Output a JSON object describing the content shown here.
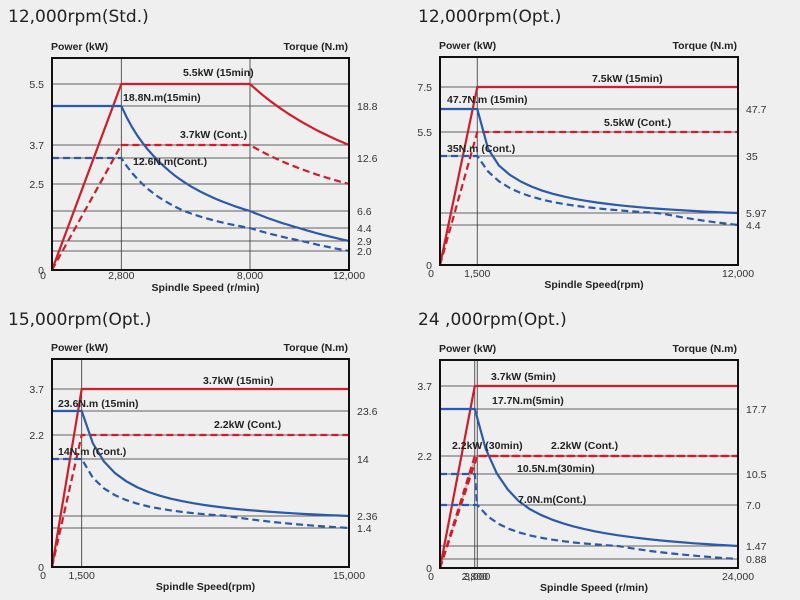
{
  "colors": {
    "power": "#cc1f2b",
    "torque": "#2b5aa8",
    "fill": "#e8a0a6",
    "grid": "#333333",
    "frame": "#111111"
  },
  "chart_data": [
    {
      "type": "line",
      "title": "12,000rpm(Std.)",
      "ylabel_left": "Power (kW)",
      "ylabel_right": "Torque (N.m)",
      "xlabel": "Spindle Speed (r/min)",
      "xlim": [
        0,
        12000
      ],
      "x_ticks": [
        "0",
        "2,800",
        "8,000",
        "12,000"
      ],
      "x_tick_values": [
        0,
        2800,
        8000,
        12000
      ],
      "left_ticks": [
        "0",
        "2.5",
        "3.7",
        "5.5"
      ],
      "right_ticks": [
        "18.8",
        "12.6",
        "6.6",
        "4.4",
        "2.9",
        "2.0"
      ],
      "series": [
        {
          "name": "5.5kW (15min)",
          "axis": "power",
          "style": "solid",
          "points": [
            [
              0,
              0
            ],
            [
              2800,
              5.5
            ],
            [
              8000,
              5.5
            ],
            [
              12000,
              3.7
            ]
          ]
        },
        {
          "name": "3.7kW (Cont.)",
          "axis": "power",
          "style": "dashed",
          "points": [
            [
              0,
              0
            ],
            [
              2800,
              3.7
            ],
            [
              8000,
              3.7
            ],
            [
              12000,
              2.5
            ]
          ]
        },
        {
          "name": "18.8N.m(15min)",
          "axis": "torque",
          "style": "solid",
          "points": [
            [
              0,
              18.8
            ],
            [
              2800,
              18.8
            ],
            [
              8000,
              6.6
            ],
            [
              12000,
              2.9
            ]
          ]
        },
        {
          "name": "12.6N.m(Cont.)",
          "axis": "torque",
          "style": "dashed",
          "points": [
            [
              0,
              12.6
            ],
            [
              2800,
              12.6
            ],
            [
              8000,
              4.4
            ],
            [
              12000,
              2.0
            ]
          ]
        }
      ],
      "annotations": [
        "5.5kW (15min)",
        "18.8N.m(15min)",
        "3.7kW (Cont.)",
        "12.6N.m(Cont.)"
      ]
    },
    {
      "type": "line",
      "title": "12,000rpm(Opt.)",
      "ylabel_left": "Power (kW)",
      "ylabel_right": "Torque (N.m)",
      "xlabel": "Spindle Speed(rpm)",
      "xlim": [
        0,
        12000
      ],
      "x_ticks": [
        "0",
        "1,500",
        "12,000"
      ],
      "x_tick_values": [
        0,
        1500,
        12000
      ],
      "left_ticks": [
        "0",
        "5.5",
        "7.5"
      ],
      "right_ticks": [
        "47.7",
        "35",
        "5.97",
        "4.4"
      ],
      "series": [
        {
          "name": "7.5kW (15min)",
          "axis": "power",
          "style": "solid",
          "points": [
            [
              0,
              0
            ],
            [
              1500,
              7.5
            ],
            [
              12000,
              7.5
            ]
          ]
        },
        {
          "name": "5.5kW (Cont.)",
          "axis": "power",
          "style": "dashed",
          "points": [
            [
              0,
              0
            ],
            [
              1500,
              5.5
            ],
            [
              12000,
              5.5
            ]
          ]
        },
        {
          "name": "47.7N.m (15min)",
          "axis": "torque",
          "style": "solid",
          "points": [
            [
              0,
              47.7
            ],
            [
              1500,
              47.7
            ],
            [
              12000,
              5.97
            ]
          ]
        },
        {
          "name": "35N.m (Cont.)",
          "axis": "torque",
          "style": "dashed",
          "points": [
            [
              0,
              35
            ],
            [
              1500,
              35
            ],
            [
              12000,
              4.4
            ]
          ]
        }
      ],
      "annotations": [
        "7.5kW (15min)",
        "47.7N.m (15min)",
        "5.5kW (Cont.)",
        "35N.m (Cont.)"
      ]
    },
    {
      "type": "line",
      "title": "15,000rpm(Opt.)",
      "ylabel_left": "Power (kW)",
      "ylabel_right": "Torque (N.m)",
      "xlabel": "Spindle Speed(rpm)",
      "xlim": [
        0,
        15000
      ],
      "x_ticks": [
        "0",
        "1,500",
        "15,000"
      ],
      "x_tick_values": [
        0,
        1500,
        15000
      ],
      "left_ticks": [
        "0",
        "2.2",
        "3.7"
      ],
      "right_ticks": [
        "23.6",
        "14",
        "2.36",
        "1.4"
      ],
      "series": [
        {
          "name": "3.7kW (15min)",
          "axis": "power",
          "style": "solid",
          "points": [
            [
              0,
              0
            ],
            [
              1500,
              3.7
            ],
            [
              15000,
              3.7
            ]
          ]
        },
        {
          "name": "2.2kW (Cont.)",
          "axis": "power",
          "style": "dashed",
          "points": [
            [
              0,
              0
            ],
            [
              1500,
              2.2
            ],
            [
              15000,
              2.2
            ]
          ]
        },
        {
          "name": "23.6N.m (15min)",
          "axis": "torque",
          "style": "solid",
          "points": [
            [
              0,
              23.6
            ],
            [
              1500,
              23.6
            ],
            [
              15000,
              2.36
            ]
          ]
        },
        {
          "name": "14N.m (Cont.)",
          "axis": "torque",
          "style": "dashed",
          "points": [
            [
              0,
              14
            ],
            [
              1500,
              14
            ],
            [
              15000,
              1.4
            ]
          ]
        }
      ],
      "annotations": [
        "3.7kW (15min)",
        "23.6N.m (15min)",
        "2.2kW (Cont.)",
        "14N.m (Cont.)"
      ]
    },
    {
      "type": "line",
      "title": "24 ,000rpm(Opt.)",
      "ylabel_left": "Power (kW)",
      "ylabel_right": "Torque (N.m)",
      "xlabel": "Spindle Speed (r/min)",
      "xlim": [
        0,
        24000
      ],
      "x_ticks": [
        "0",
        "2,800",
        "3,000",
        "24,000"
      ],
      "x_tick_values": [
        0,
        2800,
        3000,
        24000
      ],
      "left_ticks": [
        "0",
        "2.2",
        "3.7"
      ],
      "right_ticks": [
        "17.7",
        "10.5",
        "7.0",
        "1.47",
        "0.88"
      ],
      "series": [
        {
          "name": "3.7kW (5min)",
          "axis": "power",
          "style": "solid",
          "points": [
            [
              0,
              0
            ],
            [
              2800,
              3.7
            ],
            [
              24000,
              3.7
            ]
          ]
        },
        {
          "name": "2.2kW (30min)",
          "axis": "power",
          "style": "dashed",
          "points": [
            [
              0,
              0
            ],
            [
              2800,
              2.2
            ],
            [
              24000,
              2.2
            ]
          ]
        },
        {
          "name": "2.2kW (Cont.)",
          "axis": "power",
          "style": "dashed",
          "points": [
            [
              0,
              0
            ],
            [
              3000,
              2.2
            ],
            [
              24000,
              2.2
            ]
          ]
        },
        {
          "name": "17.7N.m(5min)",
          "axis": "torque",
          "style": "solid",
          "points": [
            [
              0,
              17.7
            ],
            [
              2800,
              17.7
            ],
            [
              24000,
              1.47
            ]
          ]
        },
        {
          "name": "10.5N.m(30min)",
          "axis": "torque",
          "style": "dashed",
          "points": [
            [
              0,
              10.5
            ],
            [
              2800,
              10.5
            ],
            [
              3000,
              7.0
            ]
          ]
        },
        {
          "name": "7.0N.m(Cont.)",
          "axis": "torque",
          "style": "dashed",
          "points": [
            [
              0,
              7.0
            ],
            [
              3000,
              7.0
            ],
            [
              24000,
              0.88
            ]
          ]
        }
      ],
      "annotations": [
        "3.7kW (5min)",
        "17.7N.m(5min)",
        "2.2kW (30min)",
        "2.2kW (Cont.)",
        "10.5N.m(30min)",
        "7.0N.m(Cont.)"
      ]
    }
  ]
}
